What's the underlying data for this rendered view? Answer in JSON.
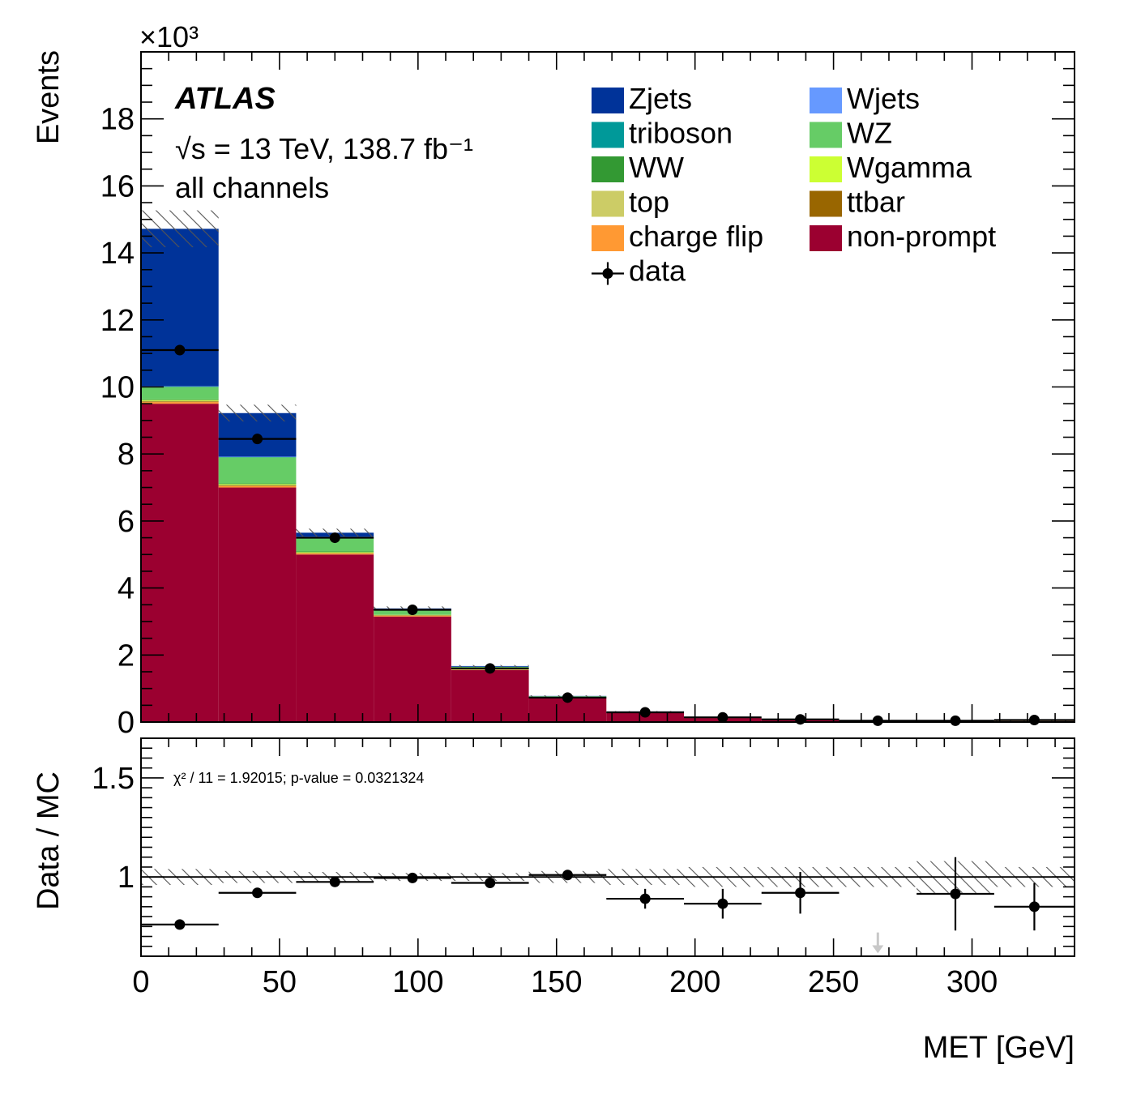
{
  "chart_data": {
    "type": "bar",
    "stacked": true,
    "x_unit_label": "MET [GeV]",
    "xlim": [
      0,
      337
    ],
    "x_ticks": [
      0,
      50,
      100,
      150,
      200,
      250,
      300
    ],
    "bin_edges": [
      0,
      28,
      56,
      84,
      112,
      140,
      168,
      196,
      224,
      252,
      280,
      308,
      337
    ],
    "main": {
      "ylabel": "Events",
      "y_exponent": "×10³",
      "ylim": [
        0,
        20
      ],
      "y_ticks": [
        0,
        2,
        4,
        6,
        8,
        10,
        12,
        14,
        16,
        18
      ],
      "series": [
        {
          "name": "non-prompt",
          "color": "#9b0030",
          "values": [
            9.5,
            7.0,
            5.0,
            3.15,
            1.55,
            0.72,
            0.28,
            0.12,
            0.07,
            0.04,
            0.03,
            0.03
          ]
        },
        {
          "name": "charge flip",
          "color": "#ff9933",
          "values": [
            0.05,
            0.04,
            0.03,
            0.02,
            0.01,
            0.005,
            0.003,
            0.002,
            0.001,
            0.001,
            0.001,
            0.001
          ]
        },
        {
          "name": "ttbar",
          "color": "#996600",
          "values": [
            0.02,
            0.02,
            0.01,
            0.01,
            0.005,
            0.003,
            0.002,
            0.001,
            0.001,
            0.001,
            0.001,
            0.001
          ]
        },
        {
          "name": "top",
          "color": "#cccc66",
          "values": [
            0.02,
            0.02,
            0.01,
            0.01,
            0.005,
            0.003,
            0.002,
            0.001,
            0.001,
            0.001,
            0.001,
            0.001
          ]
        },
        {
          "name": "Wgamma",
          "color": "#ccff33",
          "values": [
            0.02,
            0.02,
            0.02,
            0.01,
            0.005,
            0.003,
            0.002,
            0.001,
            0.001,
            0.001,
            0.001,
            0.001
          ]
        },
        {
          "name": "WW",
          "color": "#339933",
          "values": [
            0.02,
            0.02,
            0.02,
            0.01,
            0.01,
            0.005,
            0.003,
            0.002,
            0.001,
            0.001,
            0.001,
            0.001
          ]
        },
        {
          "name": "WZ",
          "color": "#66cc66",
          "values": [
            0.37,
            0.78,
            0.42,
            0.12,
            0.06,
            0.03,
            0.02,
            0.01,
            0.01,
            0.005,
            0.005,
            0.01
          ]
        },
        {
          "name": "triboson",
          "color": "#009999",
          "values": [
            0.01,
            0.01,
            0.01,
            0.005,
            0.003,
            0.002,
            0.001,
            0.001,
            0.001,
            0.001,
            0.001,
            0.001
          ]
        },
        {
          "name": "Wjets",
          "color": "#6699ff",
          "values": [
            0.01,
            0.01,
            0.01,
            0.005,
            0.003,
            0.002,
            0.001,
            0.001,
            0.001,
            0.001,
            0.001,
            0.001
          ]
        },
        {
          "name": "Zjets",
          "color": "#003399",
          "values": [
            4.7,
            1.3,
            0.12,
            0.05,
            0.02,
            0.005,
            0.003,
            0.002,
            0.002,
            0.002,
            0.002,
            0.002
          ]
        }
      ],
      "uncertainty_halfwidth": [
        0.55,
        0.25,
        0.12,
        0.06,
        0.03,
        0.02,
        0.01,
        0.008,
        0.005,
        0.004,
        0.004,
        0.004
      ],
      "data": {
        "name": "data",
        "x": [
          14,
          42,
          70,
          98,
          126,
          154,
          182,
          210,
          238,
          266,
          294,
          322.5
        ],
        "y": [
          11.1,
          8.45,
          5.5,
          3.35,
          1.6,
          0.73,
          0.29,
          0.14,
          0.08,
          0.04,
          0.04,
          0.06
        ]
      }
    },
    "ratio": {
      "ylabel": "Data / MC",
      "ylim": [
        0.6,
        1.7
      ],
      "y_ticks": [
        1,
        1.5
      ],
      "x": [
        14,
        42,
        70,
        98,
        126,
        154,
        182,
        210,
        238,
        294,
        322.5
      ],
      "y": [
        0.76,
        0.92,
        0.975,
        0.995,
        0.97,
        1.01,
        0.89,
        0.865,
        0.92,
        0.915,
        0.85
      ],
      "yerr": [
        0.01,
        0.01,
        0.01,
        0.01,
        0.015,
        0.025,
        0.05,
        0.075,
        0.105,
        0.185,
        0.12
      ],
      "uncertainty_halfwidth": [
        0.04,
        0.03,
        0.025,
        0.02,
        0.02,
        0.03,
        0.04,
        0.05,
        0.05,
        0.05,
        0.08,
        0.05
      ],
      "out_of_range_x": [
        266
      ],
      "annotation": "χ² / 11 = 1.92015; p-value = 0.0321324"
    },
    "annotations": {
      "experiment": "ATLAS",
      "energy_lumi": "√s = 13 TeV, 138.7 fb⁻¹",
      "selection": "all channels"
    },
    "legend": [
      {
        "label": "Zjets",
        "color": "#003399"
      },
      {
        "label": "Wjets",
        "color": "#6699ff"
      },
      {
        "label": "triboson",
        "color": "#009999"
      },
      {
        "label": "WZ",
        "color": "#66cc66"
      },
      {
        "label": "WW",
        "color": "#339933"
      },
      {
        "label": "Wgamma",
        "color": "#ccff33"
      },
      {
        "label": "top",
        "color": "#cccc66"
      },
      {
        "label": "ttbar",
        "color": "#996600"
      },
      {
        "label": "charge flip",
        "color": "#ff9933"
      },
      {
        "label": "non-prompt",
        "color": "#9b0030"
      },
      {
        "label": "data",
        "color": "#000000",
        "marker": true
      }
    ]
  }
}
